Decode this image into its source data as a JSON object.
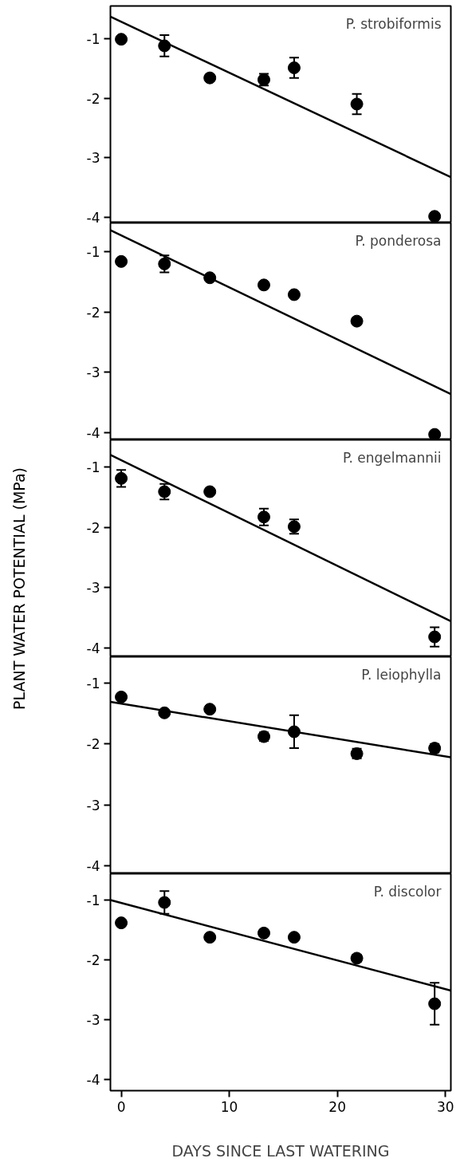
{
  "chart_data": [
    {
      "type": "scatter",
      "title": "P. strobiformis",
      "xlim": [
        -1,
        30.5
      ],
      "ylim": [
        -4.1,
        -0.45
      ],
      "yticks": [
        -1,
        -2,
        -3,
        -4
      ],
      "tick_labels": "y",
      "series": [
        {
          "marker": "circle",
          "color": "#000000",
          "x": [
            0,
            4,
            8.2,
            13.2,
            16,
            21.8,
            29
          ],
          "values": [
            -1.01,
            -1.12,
            -1.66,
            -1.69,
            -1.49,
            -2.1,
            -3.99
          ],
          "errors": [
            null,
            0.18,
            null,
            0.1,
            0.17,
            0.17,
            null
          ]
        },
        {
          "type": "line",
          "color": "#000000",
          "x": [
            -1,
            30.5
          ],
          "values": [
            -0.63,
            -3.33
          ]
        }
      ]
    },
    {
      "type": "scatter",
      "title": "P. ponderosa",
      "xlim": [
        -1,
        30.5
      ],
      "ylim": [
        -4.12,
        -0.52
      ],
      "yticks": [
        -1,
        -2,
        -3,
        -4
      ],
      "tick_labels": "y",
      "series": [
        {
          "marker": "circle",
          "color": "#000000",
          "x": [
            0,
            4,
            8.2,
            13.2,
            16,
            21.8,
            29
          ],
          "values": [
            -1.16,
            -1.2,
            -1.43,
            -1.55,
            -1.71,
            -2.15,
            -4.03
          ],
          "errors": [
            null,
            0.14,
            null,
            null,
            null,
            null,
            null
          ]
        },
        {
          "type": "line",
          "color": "#000000",
          "x": [
            -1,
            30.5
          ],
          "values": [
            -0.64,
            -3.36
          ]
        }
      ]
    },
    {
      "type": "scatter",
      "title": "P. engelmannii",
      "ylabel": "PLANT WATER POTENTIAL (MPa)",
      "xlim": [
        -1,
        30.5
      ],
      "ylim": [
        -4.15,
        -0.55
      ],
      "yticks": [
        -1,
        -2,
        -3,
        -4
      ],
      "tick_labels": "y",
      "series": [
        {
          "marker": "circle",
          "color": "#000000",
          "x": [
            0,
            4,
            8.2,
            13.2,
            16,
            29
          ],
          "values": [
            -1.19,
            -1.41,
            -1.41,
            -1.83,
            -1.99,
            -3.82
          ],
          "errors": [
            0.14,
            0.13,
            null,
            0.14,
            0.12,
            0.16
          ]
        },
        {
          "type": "line",
          "color": "#000000",
          "x": [
            -1,
            30.5
          ],
          "values": [
            -0.8,
            -3.56
          ]
        }
      ]
    },
    {
      "type": "scatter",
      "title": "P. leiophylla",
      "xlim": [
        -1,
        30.5
      ],
      "ylim": [
        -4.13,
        -0.57
      ],
      "yticks": [
        -1,
        -2,
        -3,
        -4
      ],
      "tick_labels": "y",
      "series": [
        {
          "marker": "circle",
          "color": "#000000",
          "x": [
            0,
            4,
            8.2,
            13.2,
            16,
            21.8,
            29
          ],
          "values": [
            -1.23,
            -1.49,
            -1.43,
            -1.88,
            -1.8,
            -2.16,
            -2.07
          ],
          "errors": [
            null,
            null,
            null,
            0.07,
            0.27,
            0.08,
            0.07
          ]
        },
        {
          "type": "line",
          "color": "#000000",
          "x": [
            -1,
            30.5
          ],
          "values": [
            -1.31,
            -2.22
          ]
        }
      ]
    },
    {
      "type": "scatter",
      "title": "P. discolor",
      "xlabel": "DAYS SINCE LAST WATERING",
      "xlim": [
        -1,
        30.5
      ],
      "xticks": [
        0,
        10,
        20,
        30
      ],
      "ylim": [
        -4.18,
        -0.56
      ],
      "yticks": [
        -1,
        -2,
        -3,
        -4
      ],
      "series": [
        {
          "marker": "circle",
          "color": "#000000",
          "x": [
            0,
            4,
            8.2,
            13.2,
            16,
            21.8,
            29
          ],
          "values": [
            -1.38,
            -1.04,
            -1.62,
            -1.55,
            -1.62,
            -1.97,
            -2.73
          ],
          "errors": [
            null,
            0.19,
            null,
            null,
            null,
            0.06,
            0.35
          ]
        },
        {
          "type": "line",
          "color": "#000000",
          "x": [
            -1,
            30.5
          ],
          "values": [
            -1.0,
            -2.51
          ]
        }
      ]
    }
  ]
}
